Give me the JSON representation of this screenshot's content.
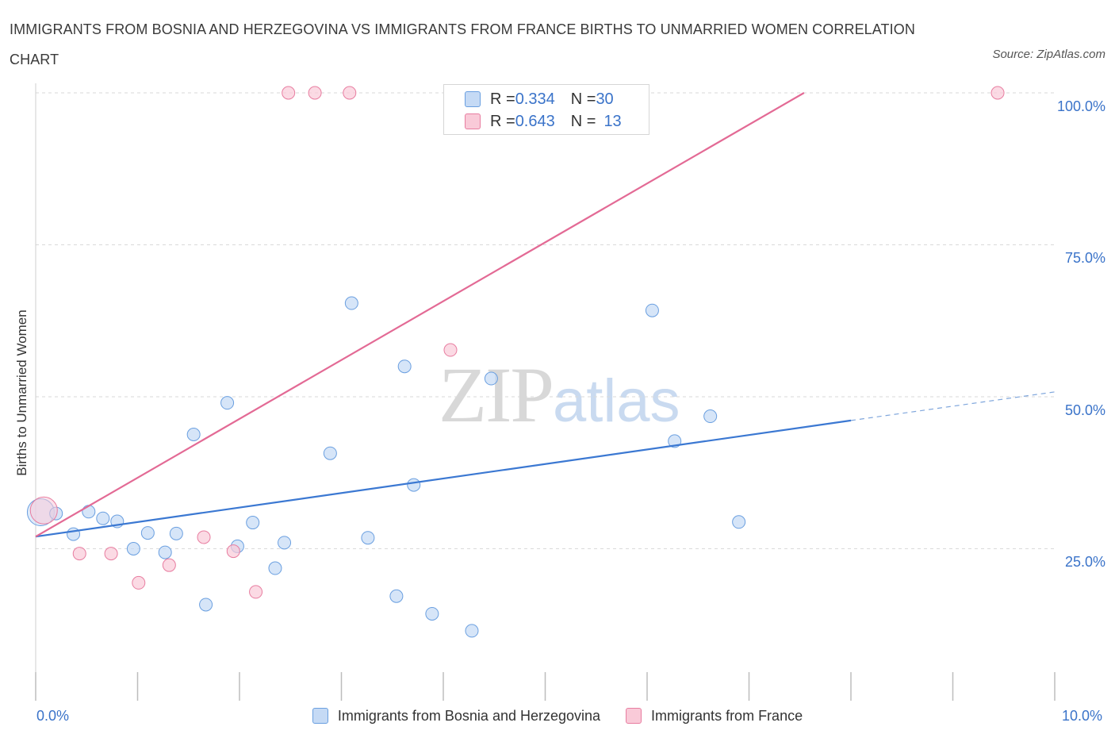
{
  "title": "IMMIGRANTS FROM BOSNIA AND HERZEGOVINA VS IMMIGRANTS FROM FRANCE BIRTHS TO UNMARRIED WOMEN CORRELATION CHART",
  "source": "Source: ZipAtlas.com",
  "watermark": {
    "zip": "ZIP",
    "atlas": "atlas"
  },
  "legend": {
    "rows": [
      {
        "r_label": "R = ",
        "r_value": "0.334",
        "n_label": "N = ",
        "n_value": "30"
      },
      {
        "r_label": "R = ",
        "r_value": "0.643",
        "n_label": "N = ",
        "n_value": "13"
      }
    ]
  },
  "chart_data": {
    "type": "scatter",
    "title": "IMMIGRANTS FROM BOSNIA AND HERZEGOVINA VS IMMIGRANTS FROM FRANCE BIRTHS TO UNMARRIED WOMEN CORRELATION CHART",
    "xlabel": "",
    "ylabel": "Births to Unmarried Women",
    "xlim": [
      0,
      10
    ],
    "ylim": [
      0,
      100
    ],
    "x_tick_labels": [
      "0.0%",
      "10.0%"
    ],
    "y_ticks": [
      25,
      50,
      75,
      100
    ],
    "y_tick_labels": [
      "25.0%",
      "50.0%",
      "75.0%",
      "100.0%"
    ],
    "grid": true,
    "legend_position": "top-center",
    "series": [
      {
        "name": "Immigrants from Bosnia and Herzegovina",
        "color": "#6a9fe0",
        "fill": "#c5daf5",
        "R": 0.334,
        "N": 30,
        "trend": {
          "x0": 0,
          "y0": 27,
          "x1": 8.0,
          "y1": 46.1,
          "x_dash_end": 10.0,
          "y_dash_end": 50.8
        },
        "points": [
          {
            "x": 0.05,
            "y": 31.0,
            "big": true
          },
          {
            "x": 0.2,
            "y": 30.8
          },
          {
            "x": 0.37,
            "y": 27.4
          },
          {
            "x": 0.52,
            "y": 31.1
          },
          {
            "x": 0.66,
            "y": 30.0
          },
          {
            "x": 0.8,
            "y": 29.5
          },
          {
            "x": 0.96,
            "y": 25.0
          },
          {
            "x": 1.1,
            "y": 27.6
          },
          {
            "x": 1.27,
            "y": 24.4
          },
          {
            "x": 1.38,
            "y": 27.5
          },
          {
            "x": 1.55,
            "y": 43.8
          },
          {
            "x": 1.67,
            "y": 15.8
          },
          {
            "x": 1.88,
            "y": 49.0
          },
          {
            "x": 1.98,
            "y": 25.4
          },
          {
            "x": 2.13,
            "y": 29.3
          },
          {
            "x": 2.35,
            "y": 21.8
          },
          {
            "x": 2.44,
            "y": 26.0
          },
          {
            "x": 2.89,
            "y": 40.7
          },
          {
            "x": 3.1,
            "y": 65.4
          },
          {
            "x": 3.26,
            "y": 26.8
          },
          {
            "x": 3.54,
            "y": 17.2
          },
          {
            "x": 3.62,
            "y": 55.0
          },
          {
            "x": 3.71,
            "y": 35.5
          },
          {
            "x": 3.89,
            "y": 14.3
          },
          {
            "x": 4.28,
            "y": 11.5
          },
          {
            "x": 4.47,
            "y": 53.0
          },
          {
            "x": 6.05,
            "y": 64.2
          },
          {
            "x": 6.27,
            "y": 42.7
          },
          {
            "x": 6.62,
            "y": 46.8
          },
          {
            "x": 6.9,
            "y": 29.4
          }
        ]
      },
      {
        "name": "Immigrants from France",
        "color": "#e87da0",
        "fill": "#f9cad8",
        "R": 0.643,
        "N": 13,
        "trend": {
          "x0": 0,
          "y0": 27,
          "x1": 7.54,
          "y1": 100
        },
        "points": [
          {
            "x": 0.08,
            "y": 31.3,
            "big": true
          },
          {
            "x": 0.43,
            "y": 24.2
          },
          {
            "x": 0.74,
            "y": 24.2
          },
          {
            "x": 1.01,
            "y": 19.4
          },
          {
            "x": 1.31,
            "y": 22.3
          },
          {
            "x": 1.65,
            "y": 26.9
          },
          {
            "x": 1.94,
            "y": 24.6
          },
          {
            "x": 2.16,
            "y": 17.9
          },
          {
            "x": 2.48,
            "y": 100.0
          },
          {
            "x": 2.74,
            "y": 100.0
          },
          {
            "x": 3.08,
            "y": 100.0
          },
          {
            "x": 4.07,
            "y": 57.7
          },
          {
            "x": 9.44,
            "y": 100.0
          }
        ]
      }
    ]
  }
}
